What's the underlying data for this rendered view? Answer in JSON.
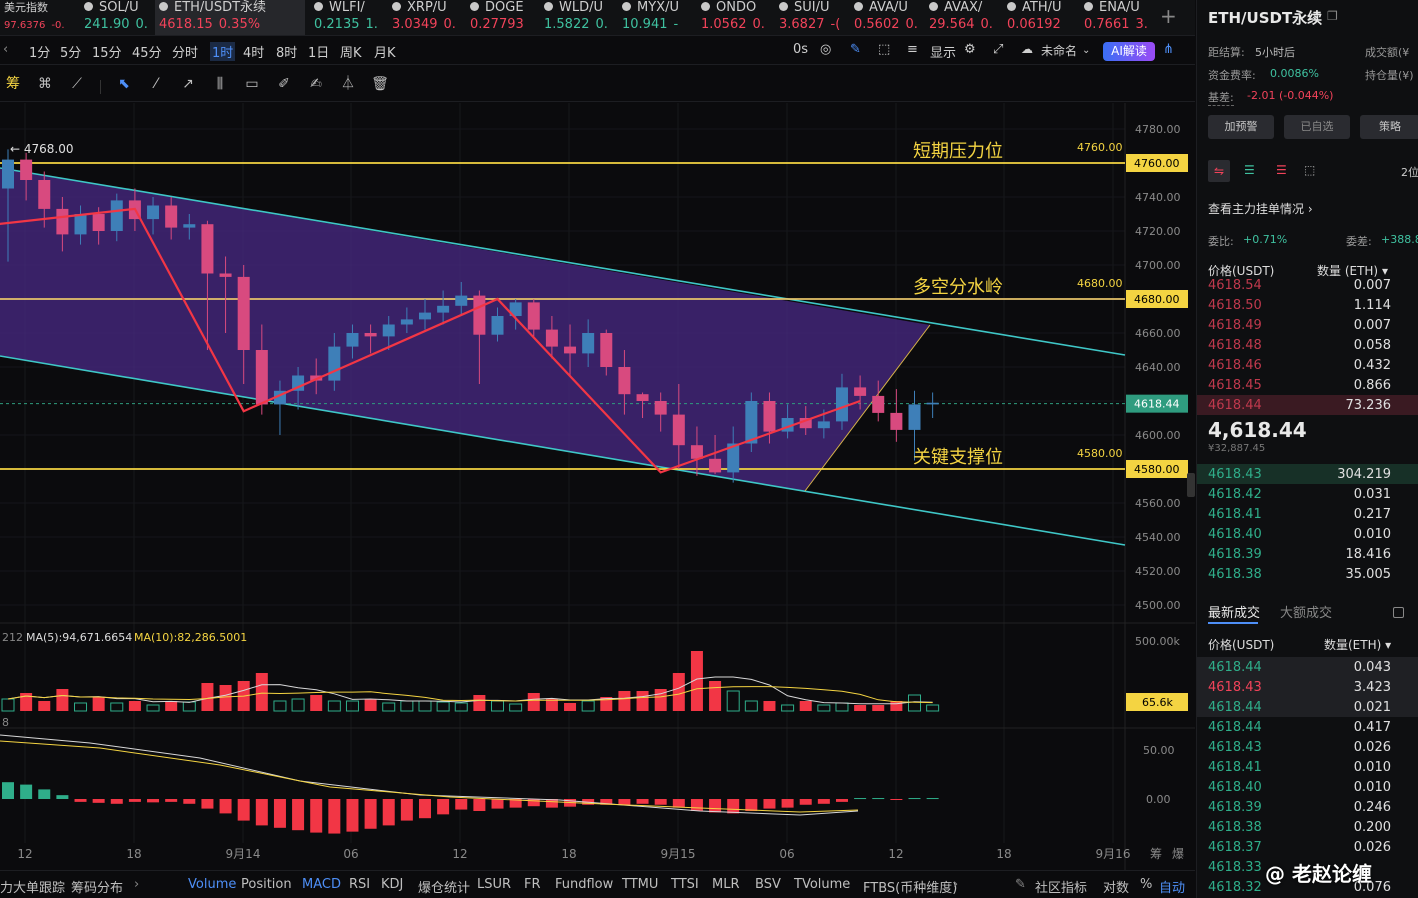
{
  "ticker": [
    {
      "name": "美元指数",
      "price": "97.6376",
      "chg": "-0.",
      "dir": "dn",
      "small": true
    },
    {
      "name": "SOL/U",
      "price": "241.90",
      "chg": "0.",
      "dir": "up"
    },
    {
      "name": "ETH/USDT永续",
      "price": "4618.15",
      "chg": "0.35%",
      "dir": "dn",
      "active": true
    },
    {
      "name": "WLFI/",
      "price": "0.2135",
      "chg": "1.",
      "dir": "up"
    },
    {
      "name": "XRP/U",
      "price": "3.0349",
      "chg": "0.",
      "dir": "dn"
    },
    {
      "name": "DOGE",
      "price": "0.27793",
      "chg": "",
      "dir": "dn"
    },
    {
      "name": "WLD/U",
      "price": "1.5822",
      "chg": "0.",
      "dir": "up"
    },
    {
      "name": "MYX/U",
      "price": "10.941",
      "chg": "-",
      "dir": "up"
    },
    {
      "name": "ONDO",
      "price": "1.0562",
      "chg": "0.",
      "dir": "dn"
    },
    {
      "name": "SUI/U",
      "price": "3.6827",
      "chg": "-(",
      "dir": "dn"
    },
    {
      "name": "AVA/U",
      "price": "0.5602",
      "chg": "0.",
      "dir": "dn"
    },
    {
      "name": "AVAX/",
      "price": "29.564",
      "chg": "0.",
      "dir": "dn"
    },
    {
      "name": "ATH/U",
      "price": "0.06192",
      "chg": "",
      "dir": "dn"
    },
    {
      "name": "ENA/U",
      "price": "0.7661",
      "chg": "3.",
      "dir": "dn"
    }
  ],
  "timeframes": [
    "1分",
    "5分",
    "15分",
    "45分",
    "分时",
    "1时",
    "4时",
    "8时",
    "1日",
    "周K",
    "月K"
  ],
  "selected_tf": "1时",
  "toolbar_right": {
    "countdown": "0s",
    "display": "显示",
    "unnamed": "未命名",
    "ai": "AI解读"
  },
  "side_tool": "筹",
  "chart_labels": {
    "high_marker": "← 4768.00",
    "resistance": "短期压力位",
    "watershed": "多空分水岭",
    "support": "关键支撑位",
    "resistance_price": "4760.00",
    "watershed_price": "4680.00",
    "support_price": "4580.00",
    "last_price": "4618.44",
    "vol_last": "65.6k",
    "vol_axis": "500.00k",
    "macd_top": "50.00",
    "macd_zero": "0.00"
  },
  "price_axis": [
    "4780.00",
    "4760.00",
    "4740.00",
    "4720.00",
    "4700.00",
    "4680.00",
    "4660.00",
    "4640.00",
    "4620.00",
    "4600.00",
    "4580.00",
    "4560.00",
    "4540.00",
    "4520.00",
    "4500.00"
  ],
  "time_axis": [
    {
      "t": "12",
      "x": 25
    },
    {
      "t": "18",
      "x": 134
    },
    {
      "t": "9月14",
      "x": 243
    },
    {
      "t": "06",
      "x": 351
    },
    {
      "t": "12",
      "x": 460
    },
    {
      "t": "18",
      "x": 569
    },
    {
      "t": "9月15",
      "x": 678
    },
    {
      "t": "06",
      "x": 787
    },
    {
      "t": "12",
      "x": 896
    },
    {
      "t": "18",
      "x": 1004
    },
    {
      "t": "9月16",
      "x": 1113
    }
  ],
  "ma_label": {
    "pre": "212",
    "ma5": "MA(5):94,671.6654",
    "ma10": "MA(10):82,286.5001"
  },
  "macd_pre": "8",
  "axis_icons": [
    "筹",
    "爆"
  ],
  "bottom": {
    "left1": "力大单跟踪",
    "left2": "筹码分布",
    "inds": [
      "Volume",
      "Position",
      "MACD",
      "RSI",
      "KDJ",
      "爆仓统计",
      "LSUR",
      "FR",
      "Fundflow",
      "TTMU",
      "TTSI",
      "MLR",
      "BSV",
      "TVolume",
      "FTBS(币种维度)"
    ],
    "right": [
      "社区指标",
      "对数",
      "%",
      "自动"
    ]
  },
  "right": {
    "title": "ETH/USDT永续",
    "settle_label": "距结算:",
    "settle_value": "5小时后",
    "volume_label": "成交额(¥",
    "funding_label": "资金费率:",
    "funding_value": "0.0086%",
    "oi_label": "持仓量(¥)",
    "basis_label": "基差:",
    "basis_value": "-2.01 (-0.044%)",
    "buttons": [
      "加预警",
      "已自选",
      "策略"
    ],
    "depth": "2位",
    "view_orders": "查看主力挂单情况",
    "wei_bi_label": "委比:",
    "wei_bi": "+0.71%",
    "wei_cha_label": "委差:",
    "wei_cha": "+388.8",
    "col_price": "价格(USDT)",
    "col_qty": "数量 (ETH)",
    "asks": [
      {
        "p": "4618.54",
        "q": "0.007"
      },
      {
        "p": "4618.50",
        "q": "1.114"
      },
      {
        "p": "4618.49",
        "q": "0.007"
      },
      {
        "p": "4618.48",
        "q": "0.058"
      },
      {
        "p": "4618.46",
        "q": "0.432"
      },
      {
        "p": "4618.45",
        "q": "0.866"
      },
      {
        "p": "4618.44",
        "q": "73.236"
      }
    ],
    "last": "4,618.44",
    "last_cny": "¥32,887.45",
    "bids": [
      {
        "p": "4618.43",
        "q": "304.219"
      },
      {
        "p": "4618.42",
        "q": "0.031"
      },
      {
        "p": "4618.41",
        "q": "0.217"
      },
      {
        "p": "4618.40",
        "q": "0.010"
      },
      {
        "p": "4618.39",
        "q": "18.416"
      },
      {
        "p": "4618.38",
        "q": "35.005"
      }
    ],
    "tab_latest": "最新成交",
    "tab_large": "大额成交",
    "trade_col_price": "价格(USDT)",
    "trade_col_qty": "数量(ETH)",
    "trades": [
      {
        "p": "4618.44",
        "q": "0.043",
        "d": "up"
      },
      {
        "p": "4618.43",
        "q": "3.423",
        "d": "dn"
      },
      {
        "p": "4618.44",
        "q": "0.021",
        "d": "up"
      },
      {
        "p": "4618.44",
        "q": "0.417",
        "d": "up"
      },
      {
        "p": "4618.43",
        "q": "0.026",
        "d": "up"
      },
      {
        "p": "4618.41",
        "q": "0.010",
        "d": "up"
      },
      {
        "p": "4618.40",
        "q": "0.010",
        "d": "up"
      },
      {
        "p": "4618.39",
        "q": "0.246",
        "d": "up"
      },
      {
        "p": "4618.38",
        "q": "0.200",
        "d": "up"
      },
      {
        "p": "4618.37",
        "q": "0.026",
        "d": "up"
      },
      {
        "p": "4618.33",
        "q": "",
        "d": "up"
      },
      {
        "p": "4618.32",
        "q": "0.076",
        "d": "up"
      }
    ],
    "watermark": "@ 老赵论缠"
  },
  "chart_data": {
    "type": "candlestick",
    "symbol": "ETH/USDT永续",
    "interval": "1时",
    "ylim": [
      4495,
      4785
    ],
    "levels": [
      4760,
      4680,
      4580
    ],
    "candles": [
      [
        4745,
        4762,
        4702,
        4768
      ],
      [
        4762,
        4750,
        4738,
        4766
      ],
      [
        4750,
        4733,
        4722,
        4755
      ],
      [
        4733,
        4718,
        4708,
        4740
      ],
      [
        4718,
        4730,
        4712,
        4735
      ],
      [
        4730,
        4720,
        4712,
        4734
      ],
      [
        4720,
        4738,
        4714,
        4742
      ],
      [
        4738,
        4727,
        4720,
        4745
      ],
      [
        4727,
        4735,
        4718,
        4740
      ],
      [
        4735,
        4722,
        4715,
        4740
      ],
      [
        4722,
        4724,
        4715,
        4730
      ],
      [
        4724,
        4695,
        4650,
        4726
      ],
      [
        4695,
        4693,
        4660,
        4705
      ],
      [
        4693,
        4650,
        4630,
        4700
      ],
      [
        4650,
        4618,
        4612,
        4665
      ],
      [
        4618,
        4626,
        4600,
        4632
      ],
      [
        4626,
        4635,
        4615,
        4640
      ],
      [
        4635,
        4632,
        4624,
        4645
      ],
      [
        4632,
        4652,
        4626,
        4660
      ],
      [
        4652,
        4660,
        4645,
        4665
      ],
      [
        4660,
        4658,
        4648,
        4665
      ],
      [
        4658,
        4665,
        4650,
        4670
      ],
      [
        4665,
        4668,
        4660,
        4675
      ],
      [
        4668,
        4672,
        4662,
        4680
      ],
      [
        4672,
        4676,
        4665,
        4685
      ],
      [
        4676,
        4682,
        4670,
        4690
      ],
      [
        4682,
        4659,
        4630,
        4685
      ],
      [
        4659,
        4670,
        4655,
        4675
      ],
      [
        4670,
        4678,
        4662,
        4680
      ],
      [
        4678,
        4662,
        4658,
        4680
      ],
      [
        4662,
        4652,
        4645,
        4670
      ],
      [
        4652,
        4648,
        4635,
        4665
      ],
      [
        4648,
        4660,
        4640,
        4668
      ],
      [
        4660,
        4640,
        4635,
        4662
      ],
      [
        4640,
        4624,
        4612,
        4650
      ],
      [
        4624,
        4620,
        4610,
        4625
      ],
      [
        4620,
        4612,
        4602,
        4625
      ],
      [
        4612,
        4594,
        4580,
        4630
      ],
      [
        4594,
        4586,
        4576,
        4605
      ],
      [
        4586,
        4578,
        4577,
        4600
      ],
      [
        4578,
        4595,
        4572,
        4605
      ],
      [
        4595,
        4620,
        4590,
        4625
      ],
      [
        4620,
        4602,
        4595,
        4625
      ],
      [
        4602,
        4610,
        4598,
        4618
      ],
      [
        4610,
        4604,
        4600,
        4617
      ],
      [
        4604,
        4608,
        4598,
        4615
      ],
      [
        4608,
        4628,
        4603,
        4636
      ],
      [
        4628,
        4623,
        4615,
        4635
      ],
      [
        4623,
        4613,
        4608,
        4632
      ],
      [
        4613,
        4603,
        4596,
        4627
      ],
      [
        4603,
        4618,
        4585,
        4626
      ],
      [
        4618,
        4619,
        4610,
        4625
      ]
    ],
    "volume": [
      [
        1,
        "up"
      ],
      [
        1,
        "dn"
      ],
      [
        1,
        "dn"
      ],
      [
        1,
        "dn"
      ],
      [
        1,
        "up"
      ],
      [
        1,
        "dn"
      ],
      [
        1,
        "up"
      ],
      [
        1,
        "dn"
      ],
      [
        1,
        "up"
      ],
      [
        1,
        "dn"
      ],
      [
        1,
        "up"
      ],
      [
        1,
        "dn"
      ],
      [
        1,
        "dn"
      ],
      [
        1,
        "dn"
      ],
      [
        1,
        "dn"
      ],
      [
        1,
        "up"
      ],
      [
        1,
        "up"
      ],
      [
        1,
        "dn"
      ],
      [
        1,
        "up"
      ],
      [
        1,
        "up"
      ],
      [
        1,
        "dn"
      ],
      [
        1,
        "up"
      ],
      [
        1,
        "up"
      ],
      [
        1,
        "up"
      ],
      [
        1,
        "up"
      ],
      [
        1,
        "up"
      ],
      [
        1,
        "dn"
      ],
      [
        1,
        "up"
      ],
      [
        1,
        "up"
      ],
      [
        1,
        "dn"
      ],
      [
        1,
        "dn"
      ],
      [
        1,
        "dn"
      ],
      [
        1,
        "up"
      ],
      [
        1,
        "dn"
      ],
      [
        1,
        "dn"
      ],
      [
        1,
        "dn"
      ],
      [
        1,
        "dn"
      ],
      [
        1,
        "dn"
      ],
      [
        1,
        "dn"
      ],
      [
        1,
        "dn"
      ],
      [
        1,
        "up"
      ],
      [
        1,
        "up"
      ],
      [
        1,
        "dn"
      ],
      [
        1,
        "up"
      ],
      [
        1,
        "dn"
      ],
      [
        1,
        "up"
      ],
      [
        1,
        "up"
      ],
      [
        1,
        "dn"
      ],
      [
        1,
        "dn"
      ],
      [
        1,
        "dn"
      ],
      [
        1,
        "up"
      ],
      [
        1,
        "up"
      ]
    ],
    "volume_scale": [
      0.12,
      0.18,
      0.1,
      0.22,
      0.08,
      0.14,
      0.08,
      0.1,
      0.06,
      0.1,
      0.09,
      0.28,
      0.26,
      0.3,
      0.38,
      0.1,
      0.12,
      0.16,
      0.1,
      0.1,
      0.12,
      0.08,
      0.1,
      0.1,
      0.09,
      0.08,
      0.16,
      0.1,
      0.07,
      0.18,
      0.12,
      0.08,
      0.1,
      0.14,
      0.2,
      0.2,
      0.22,
      0.38,
      0.6,
      0.3,
      0.2,
      0.1,
      0.1,
      0.06,
      0.1,
      0.06,
      0.08,
      0.06,
      0.06,
      0.1,
      0.16,
      0.06
    ],
    "macd_hist": [
      0.35,
      0.3,
      0.2,
      0.08,
      -0.06,
      -0.08,
      -0.1,
      -0.06,
      -0.07,
      -0.06,
      -0.1,
      -0.2,
      -0.3,
      -0.45,
      -0.55,
      -0.6,
      -0.65,
      -0.7,
      -0.72,
      -0.68,
      -0.62,
      -0.55,
      -0.45,
      -0.4,
      -0.32,
      -0.22,
      -0.25,
      -0.2,
      -0.18,
      -0.15,
      -0.18,
      -0.16,
      -0.12,
      -0.12,
      -0.12,
      -0.1,
      -0.12,
      -0.18,
      -0.25,
      -0.28,
      -0.3,
      -0.25,
      -0.2,
      -0.18,
      -0.12,
      -0.1,
      -0.06,
      0.02,
      0.02,
      -0.02,
      0.02,
      0.02
    ]
  }
}
